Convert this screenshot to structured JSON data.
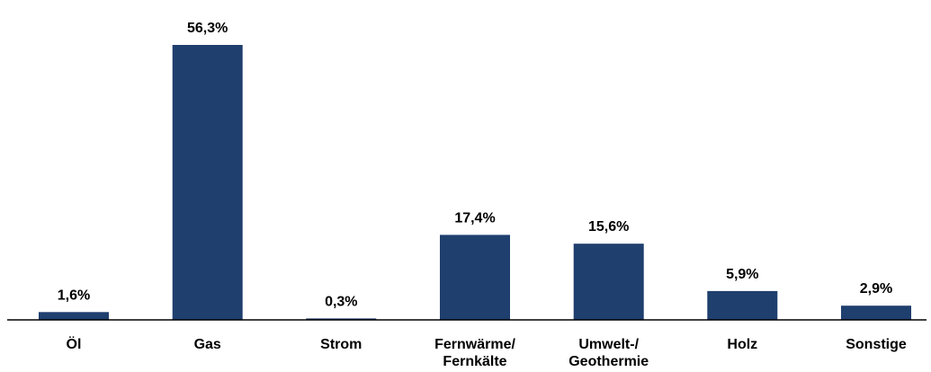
{
  "chart_data": {
    "type": "bar",
    "categories": [
      [
        "Öl"
      ],
      [
        "Gas"
      ],
      [
        "Strom"
      ],
      [
        "Fernwärme/",
        "Fernkälte"
      ],
      [
        "Umwelt-/",
        "Geothermie"
      ],
      [
        "Holz"
      ],
      [
        "Sonstige"
      ]
    ],
    "values": [
      1.6,
      56.3,
      0.3,
      17.4,
      15.6,
      5.9,
      2.9
    ],
    "value_labels": [
      "1,6%",
      "56,3%",
      "0,3%",
      "17,4%",
      "15,6%",
      "5,9%",
      "2,9%"
    ],
    "title": "",
    "xlabel": "",
    "ylabel": "",
    "ylim": [
      0,
      56.3
    ],
    "grid": false,
    "legend": "none",
    "bar_color": "#1f3f6e",
    "axis_color": "#000000"
  }
}
